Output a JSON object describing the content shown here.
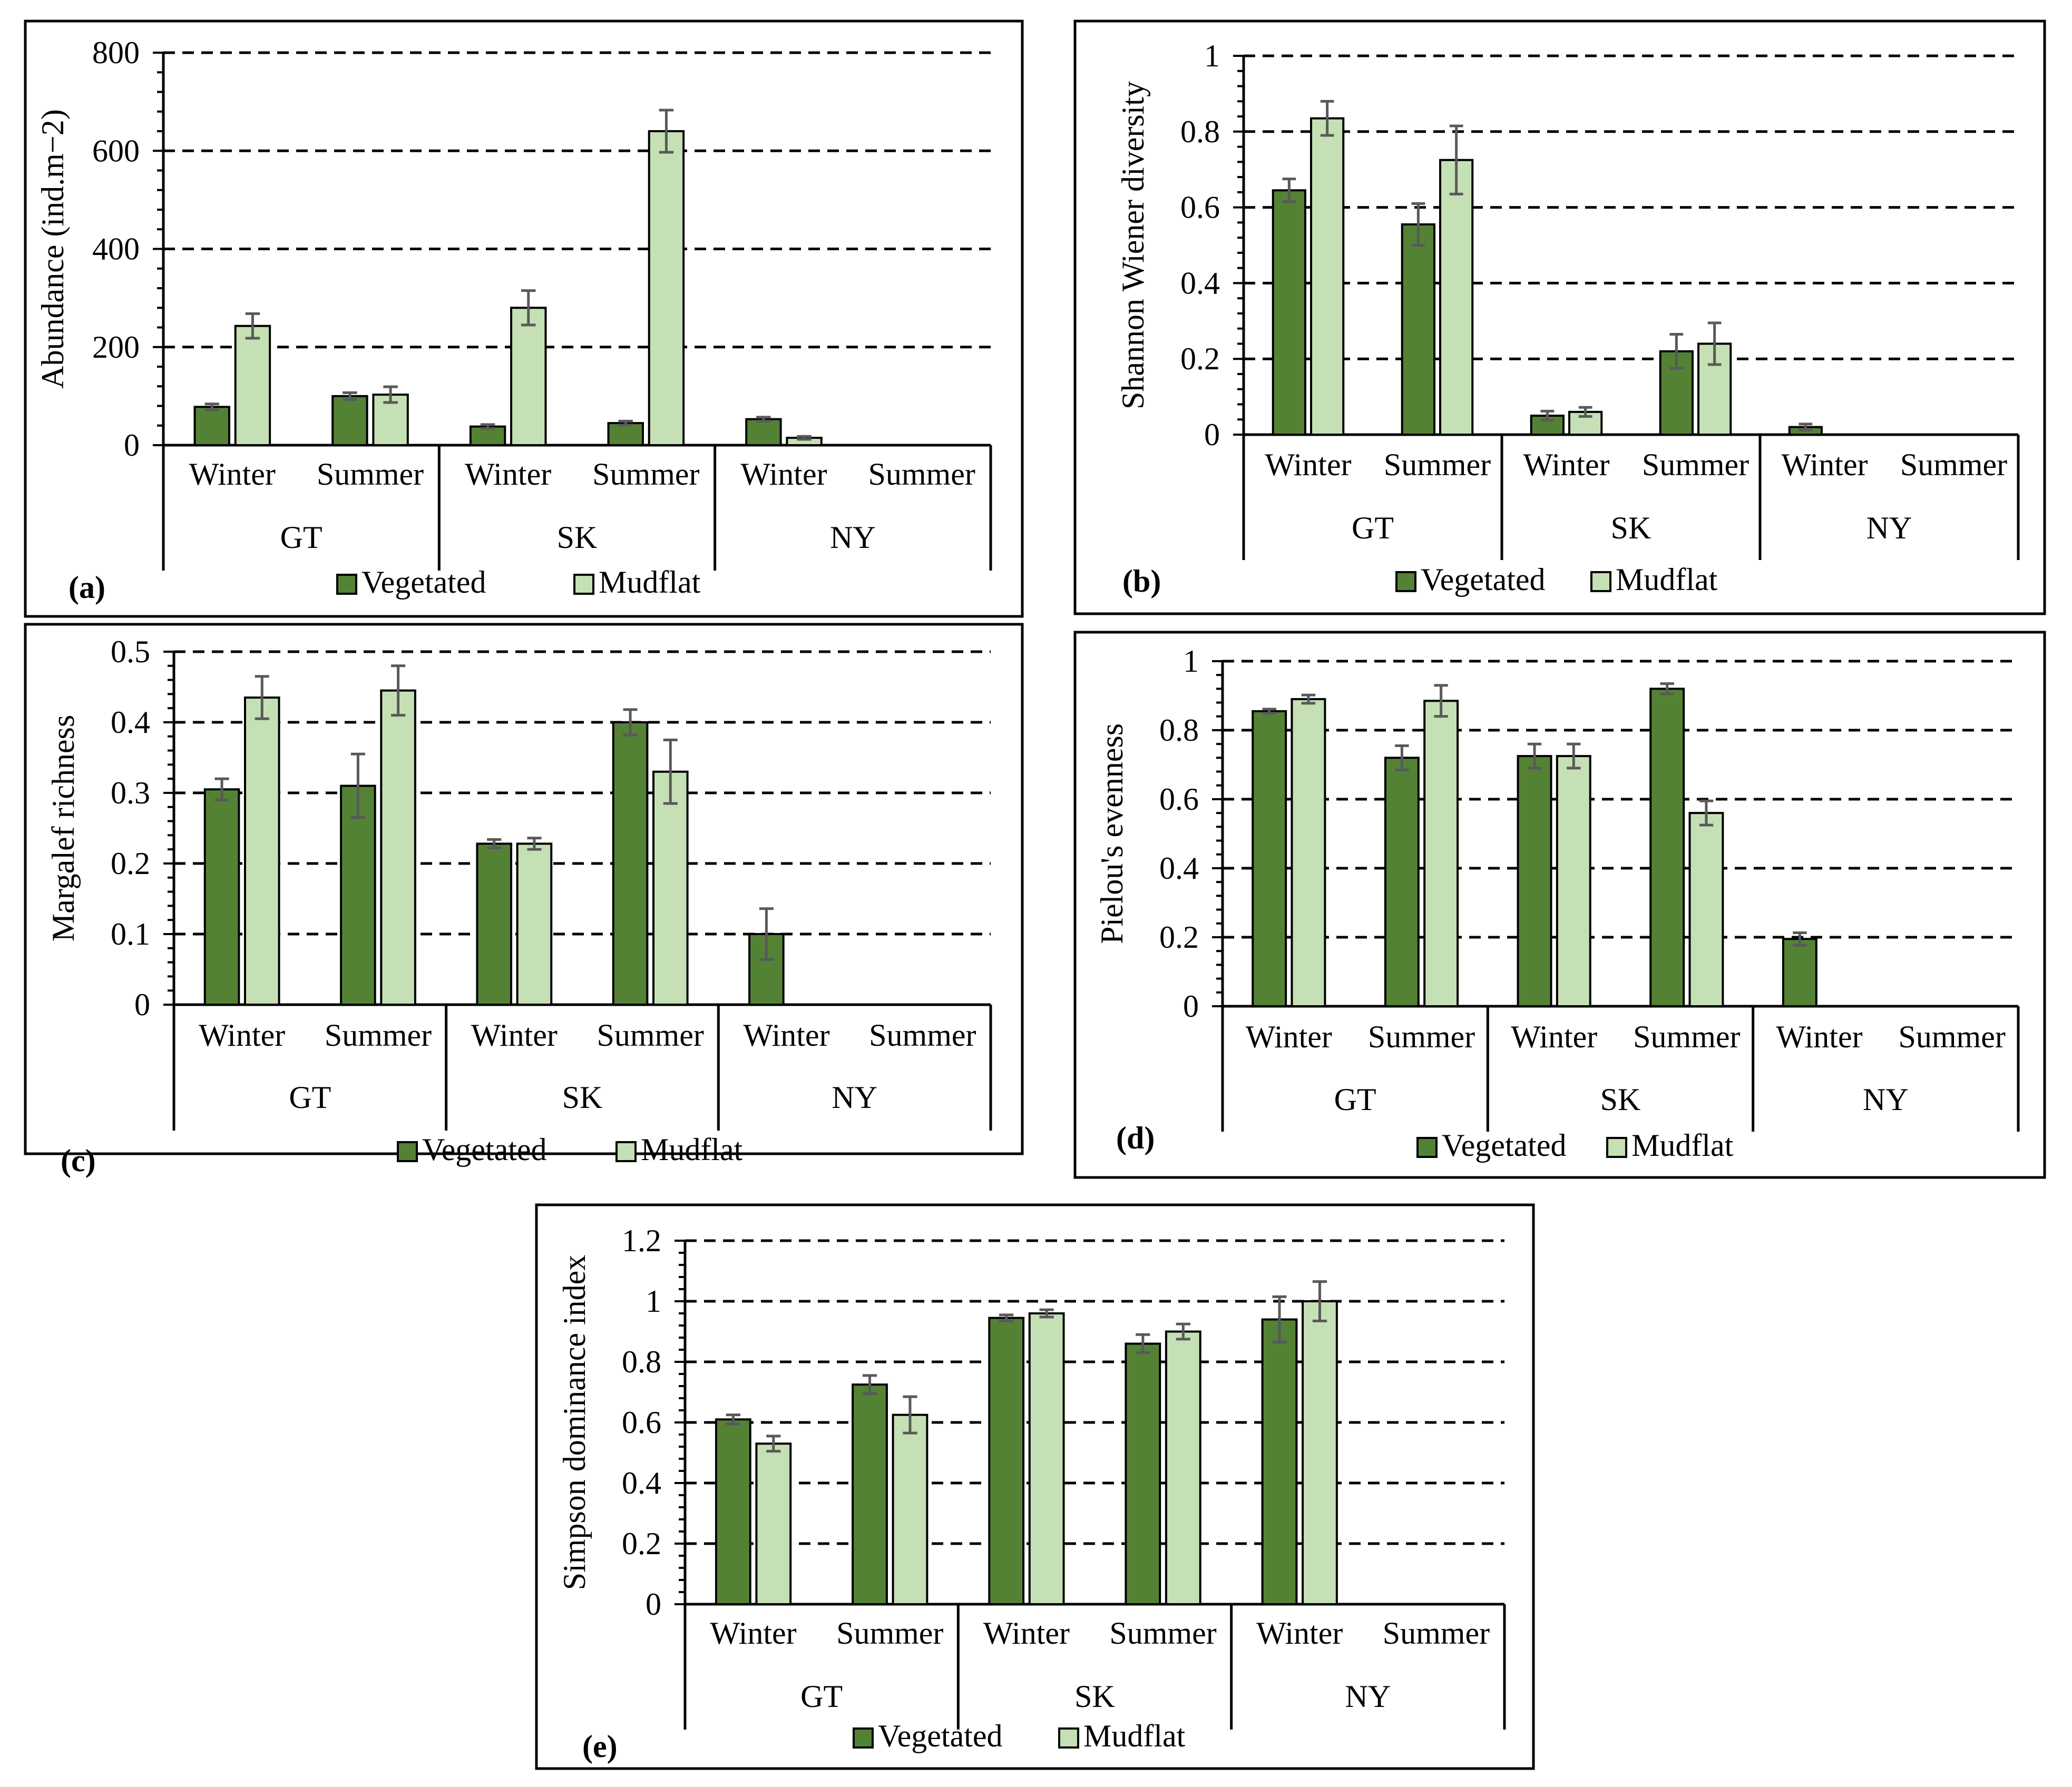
{
  "colors": {
    "vegetated": "#548235",
    "mudflat": "#C5E0B4",
    "bar_outline": "#000000",
    "error_bar": "#595959",
    "gridline": "#000000",
    "panel_border": "#000000"
  },
  "legend": {
    "vegetated": "Vegetated",
    "mudflat": "Mudflat"
  },
  "chart_data": [
    {
      "panel_label": "(a)",
      "type": "bar",
      "ylabel": "Abundance (ind.m−2)",
      "ylim": [
        0,
        800
      ],
      "yticks": [
        "0",
        "200",
        "400",
        "600",
        "800"
      ],
      "sites": [
        "GT",
        "SK",
        "NY"
      ],
      "seasons": [
        "Winter",
        "Summer"
      ],
      "series": [
        {
          "name": "Vegetated",
          "values": [
            78,
            100,
            38,
            45,
            53,
            0
          ],
          "errors": [
            6,
            7,
            4,
            4,
            4,
            0
          ]
        },
        {
          "name": "Mudflat",
          "values": [
            243,
            103,
            280,
            640,
            15,
            0
          ],
          "errors": [
            25,
            16,
            35,
            43,
            3,
            0
          ]
        }
      ]
    },
    {
      "panel_label": "(b)",
      "type": "bar",
      "ylabel": "Shannon Wiener diversity",
      "ylim": [
        0,
        1
      ],
      "yticks": [
        "0",
        "0.2",
        "0.4",
        "0.6",
        "0.8",
        "1"
      ],
      "sites": [
        "GT",
        "SK",
        "NY"
      ],
      "seasons": [
        "Winter",
        "Summer"
      ],
      "series": [
        {
          "name": "Vegetated",
          "values": [
            0.645,
            0.555,
            0.05,
            0.22,
            0.02,
            0
          ],
          "errors": [
            0.03,
            0.055,
            0.012,
            0.045,
            0.008,
            0
          ]
        },
        {
          "name": "Mudflat",
          "values": [
            0.835,
            0.725,
            0.06,
            0.24,
            0,
            0
          ],
          "errors": [
            0.045,
            0.09,
            0.012,
            0.055,
            0,
            0
          ]
        }
      ]
    },
    {
      "panel_label": "(c)",
      "type": "bar",
      "ylabel": "Margalef richness",
      "ylim": [
        0,
        0.5
      ],
      "yticks": [
        "0",
        "0.1",
        "0.2",
        "0.3",
        "0.4",
        "0.5"
      ],
      "sites": [
        "GT",
        "SK",
        "NY"
      ],
      "seasons": [
        "Winter",
        "Summer"
      ],
      "series": [
        {
          "name": "Vegetated",
          "values": [
            0.305,
            0.31,
            0.228,
            0.4,
            0.1,
            0
          ],
          "errors": [
            0.015,
            0.045,
            0.006,
            0.018,
            0.036,
            0
          ]
        },
        {
          "name": "Mudflat",
          "values": [
            0.435,
            0.445,
            0.228,
            0.33,
            0,
            0
          ],
          "errors": [
            0.03,
            0.035,
            0.008,
            0.045,
            0,
            0
          ]
        }
      ]
    },
    {
      "panel_label": "(d)",
      "type": "bar",
      "ylabel": "Pielou's evenness",
      "ylim": [
        0,
        1
      ],
      "yticks": [
        "0",
        "0.2",
        "0.4",
        "0.6",
        "0.8",
        "1"
      ],
      "sites": [
        "GT",
        "SK",
        "NY"
      ],
      "seasons": [
        "Winter",
        "Summer"
      ],
      "series": [
        {
          "name": "Vegetated",
          "values": [
            0.855,
            0.72,
            0.725,
            0.92,
            0.195,
            0
          ],
          "errors": [
            0.006,
            0.035,
            0.035,
            0.015,
            0.018,
            0
          ]
        },
        {
          "name": "Mudflat",
          "values": [
            0.89,
            0.885,
            0.725,
            0.56,
            0,
            0
          ],
          "errors": [
            0.012,
            0.045,
            0.035,
            0.035,
            0,
            0
          ]
        }
      ]
    },
    {
      "panel_label": "(e)",
      "type": "bar",
      "ylabel": "Simpson dominance index",
      "ylim": [
        0,
        1.2
      ],
      "yticks": [
        "0",
        "0.2",
        "0.4",
        "0.6",
        "0.8",
        "1",
        "1.2"
      ],
      "sites": [
        "GT",
        "SK",
        "NY"
      ],
      "seasons": [
        "Winter",
        "Summer"
      ],
      "series": [
        {
          "name": "Vegetated",
          "values": [
            0.61,
            0.725,
            0.945,
            0.86,
            0.94,
            0
          ],
          "errors": [
            0.015,
            0.03,
            0.01,
            0.03,
            0.075,
            0
          ]
        },
        {
          "name": "Mudflat",
          "values": [
            0.53,
            0.625,
            0.96,
            0.9,
            1.0,
            0
          ],
          "errors": [
            0.025,
            0.06,
            0.012,
            0.025,
            0.065,
            0
          ]
        }
      ]
    }
  ]
}
